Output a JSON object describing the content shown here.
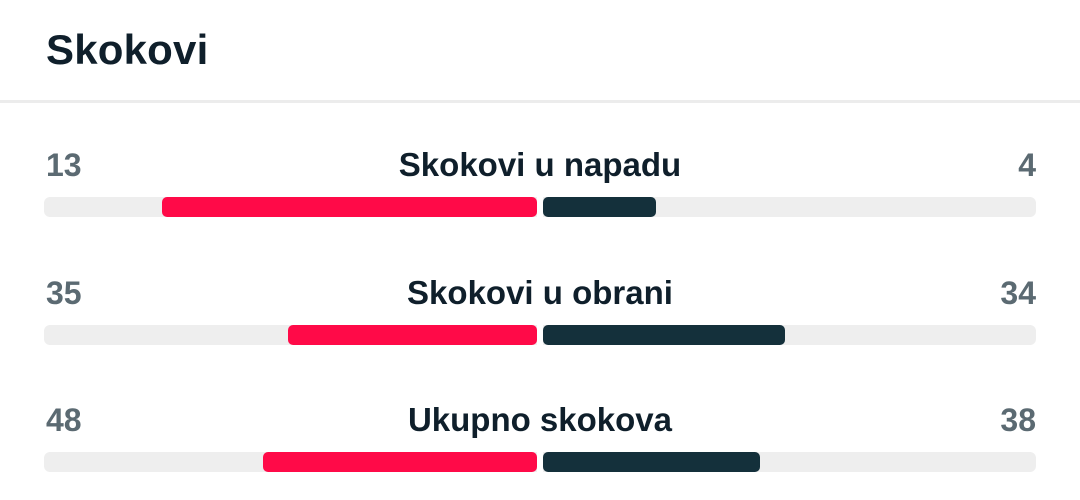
{
  "section": {
    "title": "Skokovi"
  },
  "colors": {
    "home": "#ff0a48",
    "away": "#14303b",
    "track": "#eeeeee"
  },
  "stats": [
    {
      "label": "Skokovi u napadu",
      "home": "13",
      "away": "4",
      "home_fraction": 0.76,
      "away_fraction": 0.23
    },
    {
      "label": "Skokovi u obrani",
      "home": "35",
      "away": "34",
      "home_fraction": 0.505,
      "away_fraction": 0.49
    },
    {
      "label": "Ukupno skokova",
      "home": "48",
      "away": "38",
      "home_fraction": 0.555,
      "away_fraction": 0.44
    }
  ]
}
